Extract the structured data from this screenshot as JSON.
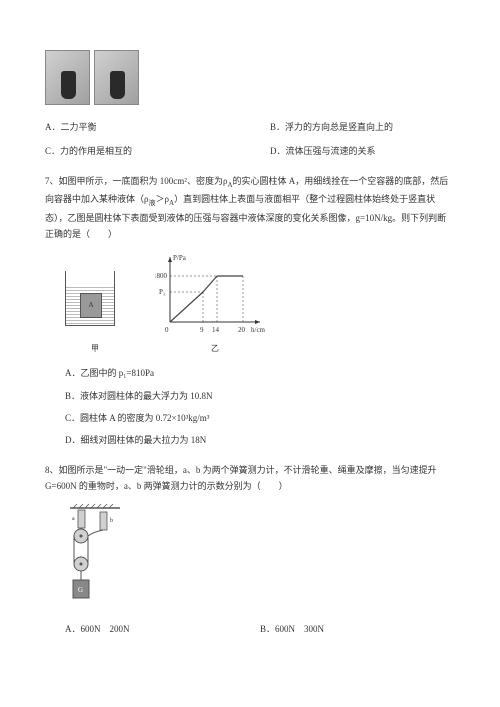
{
  "q6_photos": {
    "count": 2
  },
  "q6_options": {
    "A": "A．二力平衡",
    "B": "B．浮力的方向总是竖直向上的",
    "C": "C．力的作用是相互的",
    "D": "D．流体压强与流速的关系"
  },
  "q7": {
    "stem": "7、如图甲所示，一底面积为 100cm²、密度为ρ<sub>A</sub>的实心圆柱体 A，用细线拴在一个空容器的底部，然后向容器中加入某种液体（ρ<sub>液</sub>＞ρ<sub>A</sub>）直到圆柱体上表面与液面相平（整个过程圆柱体始终处于竖直状态），乙图是圆柱体下表面受到液体的压强与容器中液体深度的变化关系图像，g=10N/kg。则下列判断正确的是（　　）",
    "block_label": "A",
    "fig1_label": "甲",
    "fig2_label": "乙",
    "graph": {
      "ylabel": "P/Pa",
      "xlabel": "h/cm",
      "y_ticks": [
        "P₁",
        "1800"
      ],
      "y_tick_pos": [
        22,
        14
      ],
      "x_ticks": [
        "9",
        "14",
        "20"
      ],
      "x_tick_pos": [
        38,
        56,
        80
      ],
      "line_color": "#444",
      "axis_color": "#333"
    },
    "opts": {
      "A": "A．乙图中的 p₁=810Pa",
      "B": "B．液体对圆柱体的最大浮力为 10.8N",
      "C": "C．圆柱体 A 的密度为 0.72×10³kg/m³",
      "D": "D．细线对圆柱体的最大拉力为 18N"
    }
  },
  "q8": {
    "stem": "8、如图所示是\"一动一定\"滑轮组，a、b 为两个弹簧测力计，不计滑轮重、绳重及摩擦，当匀速提升 G=600N 的重物时，a、b 两弹簧测力计的示数分别为（　　）",
    "pulley": {
      "rope_color": "#555",
      "pulley_fill": "#d0d0d0",
      "block_fill": "#888"
    },
    "opts": {
      "A": "A．600N　200N",
      "B": "B．600N　300N"
    }
  },
  "style": {
    "font_size_body": 9,
    "font_size_sub": 7,
    "text_color": "#333333",
    "bg_color": "#ffffff"
  }
}
